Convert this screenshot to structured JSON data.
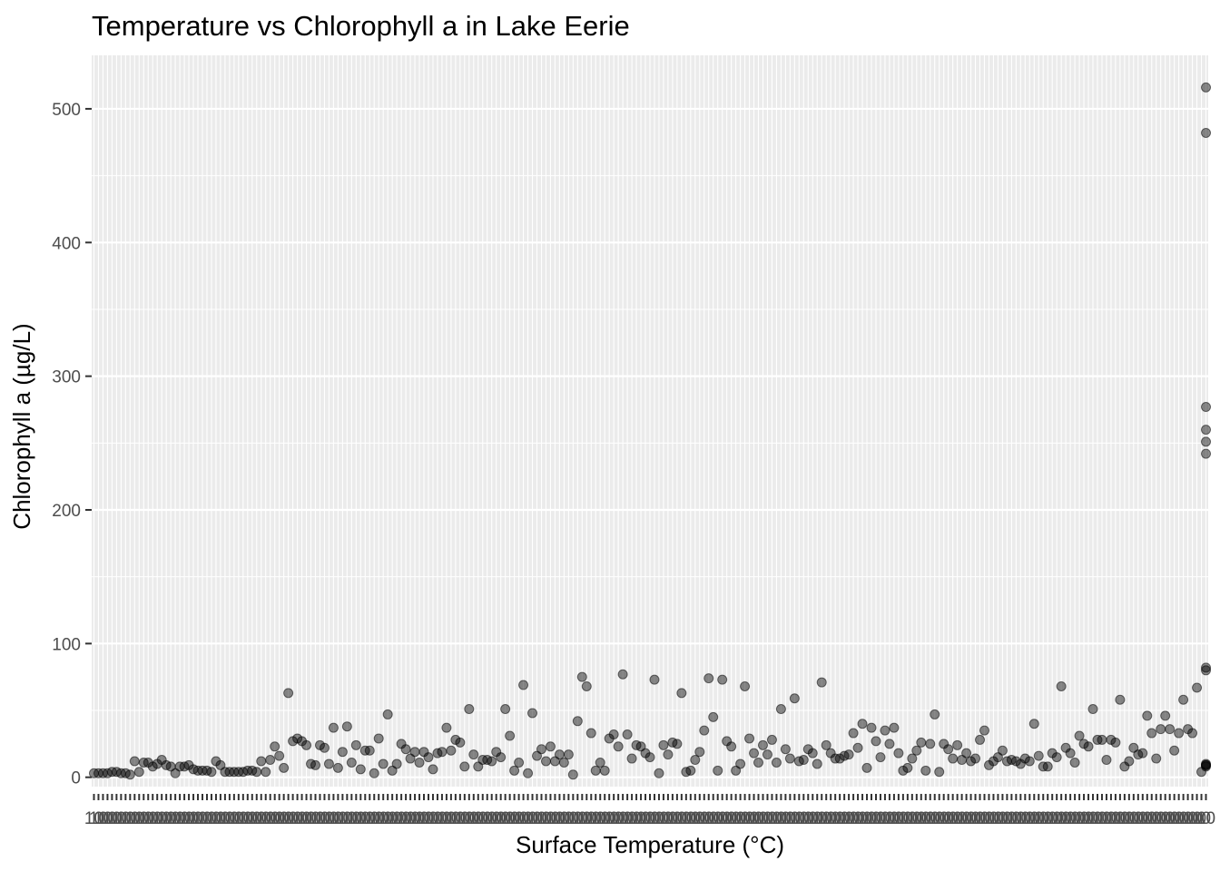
{
  "chart_data": {
    "type": "scatter",
    "title": "Temperature vs Chlorophyll a in Lake Eerie",
    "xlabel": "Surface Temperature (°C)",
    "ylabel": "Chlorophyll a (µg/L)",
    "x_scale": "discrete",
    "ylim": [
      -7,
      540
    ],
    "yticks": [
      0,
      100,
      200,
      300,
      400,
      500
    ],
    "xtick_label_visible": "10",
    "grid": true,
    "point_color": "#000000",
    "point_opacity": 0.45,
    "panel_color": "#ebebeb",
    "grid_color": "#ffffff",
    "points": [
      [
        1,
        3
      ],
      [
        2,
        3
      ],
      [
        3,
        3
      ],
      [
        4,
        3
      ],
      [
        5,
        4
      ],
      [
        6,
        4
      ],
      [
        7,
        3
      ],
      [
        8,
        3
      ],
      [
        9,
        2
      ],
      [
        10,
        12
      ],
      [
        11,
        4
      ],
      [
        12,
        11
      ],
      [
        13,
        11
      ],
      [
        14,
        8
      ],
      [
        15,
        10
      ],
      [
        16,
        13
      ],
      [
        17,
        9
      ],
      [
        18,
        8
      ],
      [
        19,
        3
      ],
      [
        20,
        8
      ],
      [
        21,
        8
      ],
      [
        22,
        9
      ],
      [
        23,
        6
      ],
      [
        24,
        5
      ],
      [
        25,
        5
      ],
      [
        26,
        5
      ],
      [
        27,
        4
      ],
      [
        28,
        12
      ],
      [
        29,
        9
      ],
      [
        30,
        4
      ],
      [
        31,
        4
      ],
      [
        32,
        4
      ],
      [
        33,
        4
      ],
      [
        34,
        4
      ],
      [
        35,
        5
      ],
      [
        36,
        5
      ],
      [
        37,
        4
      ],
      [
        38,
        12
      ],
      [
        39,
        4
      ],
      [
        40,
        13
      ],
      [
        41,
        23
      ],
      [
        42,
        16
      ],
      [
        43,
        7
      ],
      [
        44,
        63
      ],
      [
        45,
        27
      ],
      [
        46,
        29
      ],
      [
        47,
        27
      ],
      [
        48,
        24
      ],
      [
        49,
        10
      ],
      [
        50,
        9
      ],
      [
        51,
        24
      ],
      [
        52,
        22
      ],
      [
        53,
        10
      ],
      [
        54,
        37
      ],
      [
        55,
        7
      ],
      [
        56,
        19
      ],
      [
        57,
        38
      ],
      [
        58,
        11
      ],
      [
        59,
        24
      ],
      [
        60,
        6
      ],
      [
        61,
        20
      ],
      [
        62,
        20
      ],
      [
        63,
        3
      ],
      [
        64,
        29
      ],
      [
        65,
        10
      ],
      [
        66,
        47
      ],
      [
        67,
        5
      ],
      [
        68,
        10
      ],
      [
        69,
        25
      ],
      [
        70,
        21
      ],
      [
        71,
        14
      ],
      [
        72,
        19
      ],
      [
        73,
        11
      ],
      [
        74,
        19
      ],
      [
        75,
        15
      ],
      [
        76,
        6
      ],
      [
        77,
        18
      ],
      [
        78,
        19
      ],
      [
        79,
        37
      ],
      [
        80,
        20
      ],
      [
        81,
        28
      ],
      [
        82,
        26
      ],
      [
        83,
        8
      ],
      [
        84,
        51
      ],
      [
        85,
        17
      ],
      [
        86,
        8
      ],
      [
        87,
        13
      ],
      [
        88,
        13
      ],
      [
        89,
        12
      ],
      [
        90,
        19
      ],
      [
        91,
        15
      ],
      [
        92,
        51
      ],
      [
        93,
        31
      ],
      [
        94,
        5
      ],
      [
        95,
        11
      ],
      [
        96,
        69
      ],
      [
        97,
        3
      ],
      [
        98,
        48
      ],
      [
        99,
        16
      ],
      [
        100,
        21
      ],
      [
        101,
        12
      ],
      [
        102,
        23
      ],
      [
        103,
        12
      ],
      [
        104,
        17
      ],
      [
        105,
        11
      ],
      [
        106,
        17
      ],
      [
        107,
        2
      ],
      [
        108,
        42
      ],
      [
        109,
        75
      ],
      [
        110,
        68
      ],
      [
        111,
        33
      ],
      [
        112,
        5
      ],
      [
        113,
        11
      ],
      [
        114,
        5
      ],
      [
        115,
        29
      ],
      [
        116,
        32
      ],
      [
        117,
        23
      ],
      [
        118,
        77
      ],
      [
        119,
        32
      ],
      [
        120,
        14
      ],
      [
        121,
        24
      ],
      [
        122,
        23
      ],
      [
        123,
        18
      ],
      [
        124,
        15
      ],
      [
        125,
        73
      ],
      [
        126,
        3
      ],
      [
        127,
        24
      ],
      [
        128,
        17
      ],
      [
        129,
        26
      ],
      [
        130,
        25
      ],
      [
        131,
        63
      ],
      [
        132,
        4
      ],
      [
        133,
        5
      ],
      [
        134,
        13
      ],
      [
        135,
        19
      ],
      [
        136,
        35
      ],
      [
        137,
        74
      ],
      [
        138,
        45
      ],
      [
        139,
        5
      ],
      [
        140,
        73
      ],
      [
        141,
        27
      ],
      [
        142,
        23
      ],
      [
        143,
        5
      ],
      [
        144,
        10
      ],
      [
        145,
        68
      ],
      [
        146,
        29
      ],
      [
        147,
        18
      ],
      [
        148,
        11
      ],
      [
        149,
        24
      ],
      [
        150,
        17
      ],
      [
        151,
        28
      ],
      [
        152,
        11
      ],
      [
        153,
        51
      ],
      [
        154,
        21
      ],
      [
        155,
        14
      ],
      [
        156,
        59
      ],
      [
        157,
        12
      ],
      [
        158,
        13
      ],
      [
        159,
        21
      ],
      [
        160,
        18
      ],
      [
        161,
        10
      ],
      [
        162,
        71
      ],
      [
        163,
        24
      ],
      [
        164,
        18
      ],
      [
        165,
        14
      ],
      [
        166,
        14
      ],
      [
        167,
        16
      ],
      [
        168,
        17
      ],
      [
        169,
        33
      ],
      [
        170,
        22
      ],
      [
        171,
        40
      ],
      [
        172,
        7
      ],
      [
        173,
        37
      ],
      [
        174,
        27
      ],
      [
        175,
        15
      ],
      [
        176,
        35
      ],
      [
        177,
        25
      ],
      [
        178,
        37
      ],
      [
        179,
        18
      ],
      [
        180,
        5
      ],
      [
        181,
        7
      ],
      [
        182,
        14
      ],
      [
        183,
        20
      ],
      [
        184,
        26
      ],
      [
        185,
        5
      ],
      [
        186,
        25
      ],
      [
        187,
        47
      ],
      [
        188,
        4
      ],
      [
        189,
        25
      ],
      [
        190,
        21
      ],
      [
        191,
        14
      ],
      [
        192,
        24
      ],
      [
        193,
        13
      ],
      [
        194,
        18
      ],
      [
        195,
        12
      ],
      [
        196,
        14
      ],
      [
        197,
        28
      ],
      [
        198,
        35
      ],
      [
        199,
        9
      ],
      [
        200,
        12
      ],
      [
        201,
        15
      ],
      [
        202,
        20
      ],
      [
        203,
        12
      ],
      [
        204,
        13
      ],
      [
        205,
        12
      ],
      [
        206,
        10
      ],
      [
        207,
        14
      ],
      [
        208,
        12
      ],
      [
        209,
        40
      ],
      [
        210,
        16
      ],
      [
        211,
        8
      ],
      [
        212,
        8
      ],
      [
        213,
        18
      ],
      [
        214,
        15
      ],
      [
        215,
        68
      ],
      [
        216,
        22
      ],
      [
        217,
        18
      ],
      [
        218,
        11
      ],
      [
        219,
        31
      ],
      [
        220,
        25
      ],
      [
        221,
        23
      ],
      [
        222,
        51
      ],
      [
        223,
        28
      ],
      [
        224,
        28
      ],
      [
        225,
        13
      ],
      [
        226,
        28
      ],
      [
        227,
        26
      ],
      [
        228,
        58
      ],
      [
        229,
        8
      ],
      [
        230,
        12
      ],
      [
        231,
        22
      ],
      [
        232,
        17
      ],
      [
        233,
        18
      ],
      [
        234,
        46
      ],
      [
        235,
        33
      ],
      [
        236,
        14
      ],
      [
        237,
        36
      ],
      [
        238,
        46
      ],
      [
        239,
        36
      ],
      [
        240,
        20
      ],
      [
        241,
        33
      ],
      [
        242,
        58
      ],
      [
        243,
        36
      ],
      [
        244,
        33
      ],
      [
        245,
        67
      ],
      [
        246,
        4
      ],
      [
        247,
        516
      ],
      [
        247,
        482
      ],
      [
        247,
        277
      ],
      [
        247,
        260
      ],
      [
        247,
        251
      ],
      [
        247,
        242
      ],
      [
        247,
        82
      ],
      [
        247,
        80
      ],
      [
        247,
        10
      ],
      [
        247,
        9
      ],
      [
        247,
        8
      ],
      [
        247,
        9
      ]
    ]
  }
}
